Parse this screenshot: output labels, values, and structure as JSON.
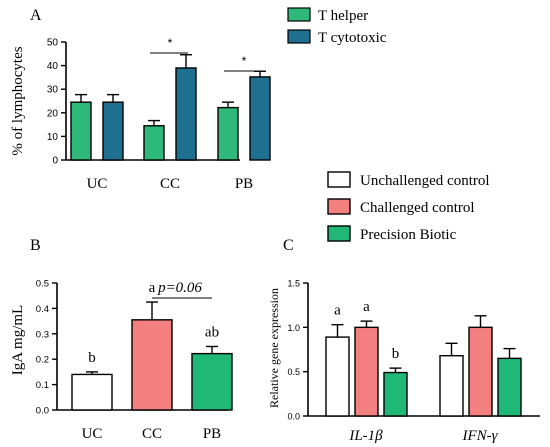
{
  "colors": {
    "t_helper": "#2eb87a",
    "t_cytotoxic": "#1f7090",
    "unchallenged": "#ffffff",
    "challenged": "#f47f7f",
    "precision": "#1fb877",
    "axis": "#000000"
  },
  "legend_top": {
    "items": [
      {
        "label": "T helper",
        "color_key": "t_helper"
      },
      {
        "label": "T cytotoxic",
        "color_key": "t_cytotoxic"
      }
    ]
  },
  "legend_mid": {
    "items": [
      {
        "label": "Unchallenged control",
        "color_key": "unchallenged"
      },
      {
        "label": "Challenged control",
        "color_key": "challenged"
      },
      {
        "label": "Precision Biotic",
        "color_key": "precision"
      }
    ]
  },
  "chart_data": [
    {
      "panel": "A",
      "type": "bar",
      "ylabel": "% of lymphocytes",
      "ylim": [
        0,
        50
      ],
      "yticks": [
        "0",
        "10",
        "20",
        "30",
        "40",
        "50"
      ],
      "categories": [
        "UC",
        "CC",
        "PB"
      ],
      "series": [
        {
          "name": "T helper",
          "values": [
            24.5,
            14.5,
            22.2
          ],
          "errors": [
            3.2,
            2.2,
            2.3
          ]
        },
        {
          "name": "T cytotoxic",
          "values": [
            24.5,
            39.0,
            35.2
          ],
          "errors": [
            3.2,
            5.6,
            2.4
          ]
        }
      ],
      "annotations": [
        {
          "text": "*",
          "category": "CC"
        },
        {
          "text": "*",
          "category": "PB"
        }
      ]
    },
    {
      "panel": "B",
      "type": "bar",
      "ylabel": "IgA mg/mL",
      "ylim": [
        0,
        0.5
      ],
      "yticks": [
        "0.0",
        "0.1",
        "0.2",
        "0.3",
        "0.4",
        "0.5"
      ],
      "categories": [
        "UC",
        "CC",
        "PB"
      ],
      "values": [
        0.14,
        0.355,
        0.222
      ],
      "errors": [
        0.01,
        0.07,
        0.028
      ],
      "letters": [
        "b",
        "a",
        "ab"
      ],
      "annotation": "p=0.06"
    },
    {
      "panel": "C",
      "type": "bar",
      "ylabel": "Relative gene expression",
      "ylim": [
        0,
        1.5
      ],
      "yticks": [
        "0.0",
        "0.5",
        "1.0",
        "1.5"
      ],
      "categories": [
        "IL-1β",
        "IFN-γ"
      ],
      "series": [
        {
          "name": "Unchallenged control",
          "values": [
            0.89,
            0.68
          ],
          "errors": [
            0.14,
            0.14
          ]
        },
        {
          "name": "Challenged control",
          "values": [
            1.0,
            1.0
          ],
          "errors": [
            0.07,
            0.13
          ]
        },
        {
          "name": "Precision Biotic",
          "values": [
            0.49,
            0.65
          ],
          "errors": [
            0.05,
            0.11
          ]
        }
      ],
      "letters": [
        "a",
        "a",
        "b"
      ]
    }
  ]
}
